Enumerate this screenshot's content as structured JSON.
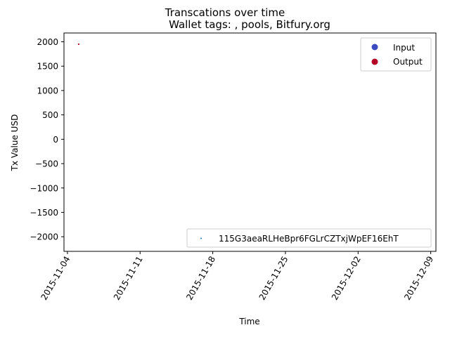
{
  "chart_data": {
    "type": "scatter",
    "suptitle": "Transcations over time",
    "title": "Wallet tags: , pools, Bitfury.org",
    "xlabel": "Time",
    "ylabel": "Tx Value USD",
    "x_ticks": [
      "2015-11-04",
      "2015-11-11",
      "2015-11-18",
      "2015-11-25",
      "2015-12-02",
      "2015-12-09"
    ],
    "y_ticks": [
      2000,
      1500,
      1000,
      500,
      0,
      -500,
      -1000,
      -1500,
      -2000
    ],
    "ylim": [
      -2300,
      2180
    ],
    "xlim": [
      "2015-11-03T16:00",
      "2015-12-09T12:00"
    ],
    "grid": false,
    "series": [
      {
        "name": "Input",
        "color": "#3b4cc0",
        "points": []
      },
      {
        "name": "Output",
        "color": "#b40426",
        "points": [
          {
            "x": "2015-11-05T02:00",
            "y": 1950
          }
        ]
      }
    ],
    "legends": [
      {
        "placement": "top-right",
        "entries": [
          {
            "label": "Input",
            "color": "#3b4cc0",
            "marker": "circle"
          },
          {
            "label": "Output",
            "color": "#b40426",
            "marker": "circle"
          }
        ]
      },
      {
        "placement": "lower-right",
        "entries": [
          {
            "label": "115G3aeaRLHeBpr6FGLrCZTxjWpEF16EhT",
            "color": "#1f77b4",
            "marker": "small-dot"
          }
        ]
      }
    ]
  }
}
